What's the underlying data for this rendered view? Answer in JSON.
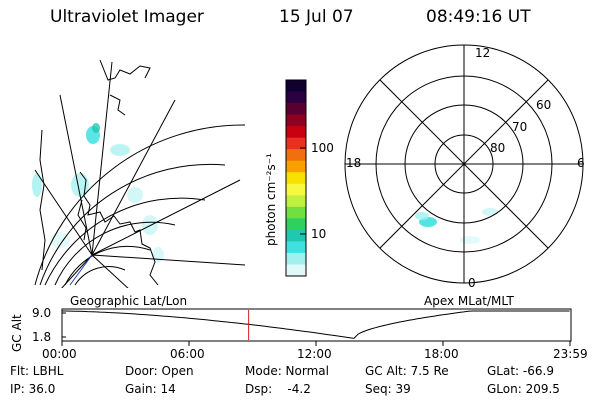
{
  "header": {
    "title": "Ultraviolet Imager",
    "date": "15 Jul 07",
    "time": "08:49:16 UT"
  },
  "colorbar": {
    "unit_label": "photon cm⁻²s⁻¹",
    "ticks": [
      "100",
      "10"
    ],
    "colors": [
      "#100030",
      "#2a0040",
      "#5a0030",
      "#900020",
      "#c80010",
      "#e83020",
      "#f07010",
      "#f8a000",
      "#f8e000",
      "#f8f840",
      "#c0f040",
      "#70e040",
      "#30d060",
      "#20c8b0",
      "#40e0e0",
      "#a0f0f0",
      "#e0f8f8"
    ]
  },
  "polar_plot": {
    "mlt_labels": [
      "12",
      "18",
      "6",
      "0"
    ],
    "lat_labels": [
      "60",
      "70",
      "80"
    ]
  },
  "map_labels": {
    "left": "Geographic Lat/Lon",
    "right": "Apex MLat/MLT"
  },
  "altitude_panel": {
    "axis_title": "GC Alt",
    "y_ticks": [
      "9.0",
      "1.8"
    ],
    "x_ticks": [
      "00:00",
      "06:00",
      "12:00",
      "18:00",
      "23:59"
    ],
    "current_time_marker": "08:49",
    "curve_color": "#000000",
    "marker_color": "#d02020"
  },
  "status": {
    "row1": {
      "filter": "Flt: LBHL",
      "door": "Door: Open",
      "mode": "Mode: Normal",
      "gc_alt": "GC Alt: 7.5 Re",
      "glat": "GLat: -66.9"
    },
    "row2": {
      "ip": "IP: 36.0",
      "gain": "Gain: 14",
      "dsp": "Dsp:    -4.2",
      "seq": "Seq: 39",
      "glon": "GLon: 209.5"
    }
  }
}
